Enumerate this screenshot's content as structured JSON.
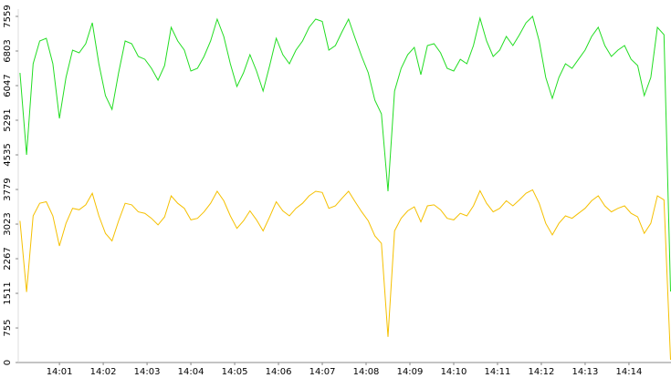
{
  "chart_data": {
    "type": "line",
    "x": [
      0.1,
      0.25,
      0.4,
      0.55,
      0.7,
      0.85,
      1,
      1.15,
      1.3,
      1.45,
      1.6,
      1.75,
      1.9,
      2.05,
      2.2,
      2.35,
      2.5,
      2.65,
      2.8,
      2.95,
      3.1,
      3.25,
      3.4,
      3.55,
      3.7,
      3.85,
      4,
      4.15,
      4.3,
      4.45,
      4.6,
      4.75,
      4.9,
      5.05,
      5.2,
      5.35,
      5.5,
      5.65,
      5.8,
      5.95,
      6.1,
      6.25,
      6.4,
      6.55,
      6.7,
      6.85,
      7,
      7.15,
      7.3,
      7.45,
      7.6,
      7.75,
      7.9,
      8.05,
      8.2,
      8.35,
      8.5,
      8.65,
      8.8,
      8.95,
      9.1,
      9.25,
      9.4,
      9.55,
      9.7,
      9.85,
      10,
      10.15,
      10.3,
      10.45,
      10.6,
      10.75,
      10.9,
      11.05,
      11.2,
      11.35,
      11.5,
      11.65,
      11.8,
      11.95,
      12.1,
      12.25,
      12.4,
      12.55,
      12.7,
      12.85,
      13,
      13.15,
      13.3,
      13.45,
      13.6,
      13.75,
      13.9,
      14.05,
      14.2,
      14.35,
      14.5,
      14.65,
      14.8,
      14.95
    ],
    "series": [
      {
        "color": "#22dd22",
        "values": [
          6325,
          4535,
          6524,
          7021,
          7081,
          6524,
          5331,
          6226,
          6822,
          6763,
          6962,
          7419,
          6524,
          5828,
          5529,
          6325,
          7021,
          6962,
          6683,
          6623,
          6425,
          6166,
          6484,
          7320,
          7021,
          6822,
          6365,
          6425,
          6683,
          7021,
          7500,
          7121,
          6524,
          6027,
          6325,
          6723,
          6365,
          5927,
          6484,
          7081,
          6723,
          6524,
          6822,
          7021,
          7320,
          7500,
          7450,
          6822,
          6922,
          7220,
          7500,
          7081,
          6683,
          6325,
          5728,
          5430,
          3739,
          5927,
          6425,
          6723,
          6882,
          6286,
          6922,
          6962,
          6763,
          6425,
          6365,
          6623,
          6524,
          6922,
          7520,
          7021,
          6683,
          6822,
          7121,
          6922,
          7160,
          7419,
          7559,
          7021,
          6226,
          5768,
          6226,
          6524,
          6425,
          6623,
          6822,
          7121,
          7320,
          6922,
          6683,
          6822,
          6922,
          6623,
          6484,
          5828,
          6226,
          7320,
          7160,
          1551
        ]
      },
      {
        "color": "#f5c000",
        "values": [
          3094,
          1540,
          3203,
          3477,
          3510,
          3203,
          2547,
          3039,
          3367,
          3335,
          3444,
          3695,
          3203,
          2820,
          2656,
          3094,
          3477,
          3444,
          3291,
          3258,
          3149,
          3006,
          3181,
          3641,
          3477,
          3367,
          3116,
          3149,
          3291,
          3477,
          3740,
          3532,
          3203,
          2930,
          3094,
          3313,
          3116,
          2875,
          3181,
          3510,
          3313,
          3203,
          3367,
          3477,
          3641,
          3740,
          3713,
          3367,
          3422,
          3586,
          3740,
          3510,
          3291,
          3094,
          2765,
          2602,
          560,
          2875,
          3149,
          3313,
          3400,
          3072,
          3422,
          3444,
          3335,
          3149,
          3116,
          3258,
          3203,
          3422,
          3751,
          3477,
          3291,
          3367,
          3532,
          3422,
          3553,
          3695,
          3772,
          3477,
          3039,
          2787,
          3039,
          3203,
          3149,
          3258,
          3367,
          3532,
          3641,
          3422,
          3291,
          3367,
          3422,
          3258,
          3181,
          2820,
          3039,
          3641,
          3553,
          60
        ]
      }
    ],
    "xlim": [
      0.06,
      14.96
    ],
    "xticks": [
      {
        "value": 1,
        "label": "14:01"
      },
      {
        "value": 2,
        "label": "14:02"
      },
      {
        "value": 3,
        "label": "14:03"
      },
      {
        "value": 4,
        "label": "14:04"
      },
      {
        "value": 5,
        "label": "14:05"
      },
      {
        "value": 6,
        "label": "14:06"
      },
      {
        "value": 7,
        "label": "14:07"
      },
      {
        "value": 8,
        "label": "14:08"
      },
      {
        "value": 9,
        "label": "14:09"
      },
      {
        "value": 10,
        "label": "14:10"
      },
      {
        "value": 11,
        "label": "14:11"
      },
      {
        "value": 12,
        "label": "14:12"
      },
      {
        "value": 13,
        "label": "14:13"
      },
      {
        "value": 14,
        "label": "14:14"
      }
    ],
    "ylim": [
      0,
      7559
    ],
    "yticks": [
      0,
      755,
      1511,
      2267,
      3023,
      3779,
      4535,
      5291,
      6047,
      6803,
      7559
    ]
  }
}
